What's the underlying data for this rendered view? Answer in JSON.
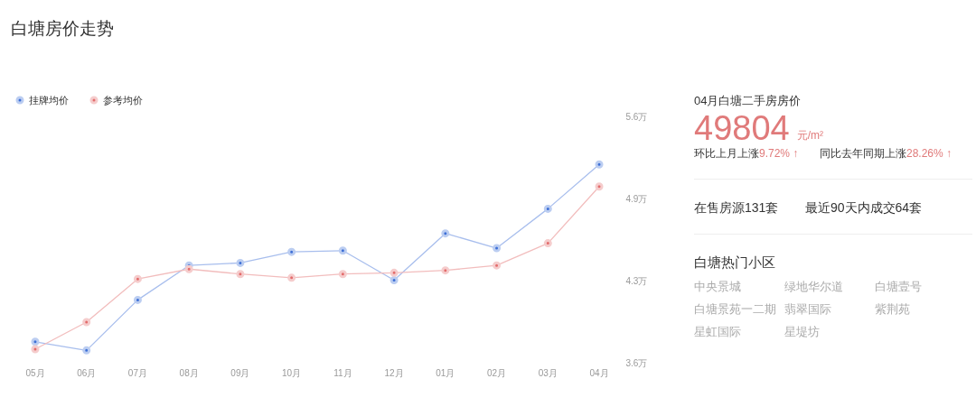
{
  "chart_data": [
    {
      "type": "line",
      "title": "白塘房价走势",
      "categories": [
        "05月",
        "06月",
        "07月",
        "08月",
        "09月",
        "10月",
        "11月",
        "12月",
        "01月",
        "02月",
        "03月",
        "04月"
      ],
      "series": [
        {
          "name": "挂牌均价",
          "color": "#3d6fd6",
          "values": [
            3.77,
            3.7,
            4.11,
            4.39,
            4.41,
            4.5,
            4.51,
            4.27,
            4.65,
            4.53,
            4.85,
            5.21
          ]
        },
        {
          "name": "参考均价",
          "color": "#e36c6c",
          "values": [
            3.71,
            3.93,
            4.28,
            4.36,
            4.32,
            4.29,
            4.32,
            4.33,
            4.35,
            4.39,
            4.57,
            5.03
          ]
        }
      ],
      "ylim": [
        3.6,
        5.6
      ],
      "yticks": [
        {
          "value": 3.6,
          "label": "3.6万"
        },
        {
          "value": 4.267,
          "label": "4.3万"
        },
        {
          "value": 4.933,
          "label": "4.9万"
        },
        {
          "value": 5.6,
          "label": "5.6万"
        }
      ],
      "legend": "top left",
      "marker": "circle",
      "line_style": "solid"
    },
    {
      "type": "other",
      "title": "04月白塘二手房房价",
      "annotations": [
        "49804",
        "元/m²",
        "环比上月上涨9.72% ↑",
        "同比去年同期上涨28.26% ↑",
        "在售房源131套",
        "最近90天内成交64套",
        "白塘热门小区",
        "中央景城",
        "绿地华尔道",
        "白塘壹号",
        "白塘景苑一二期",
        "翡翠国际",
        "紫荆苑",
        "星虹国际",
        "星堤坊"
      ]
    }
  ]
}
